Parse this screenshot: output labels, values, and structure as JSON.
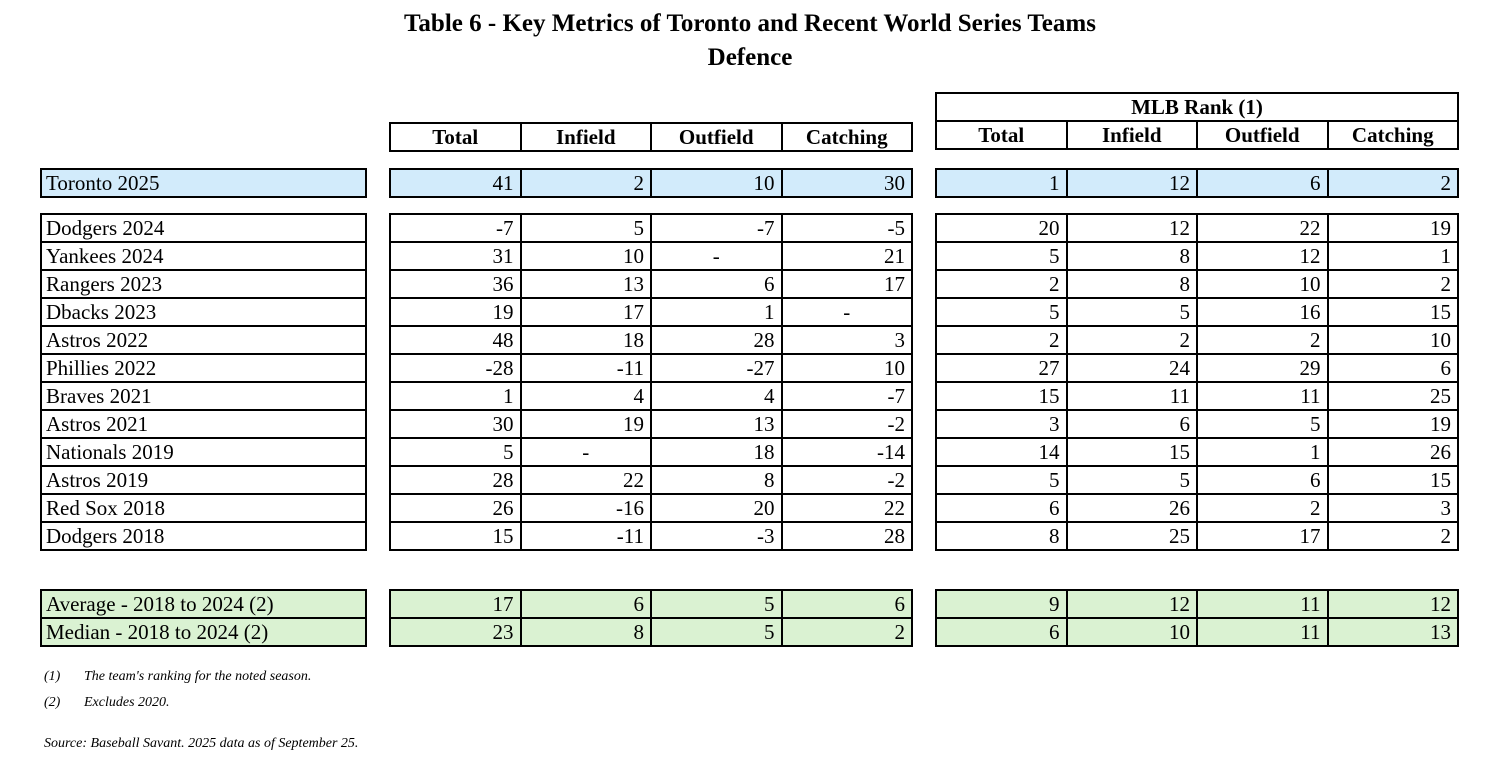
{
  "title": "Table 6 - Key Metrics of Toronto and Recent World Series Teams",
  "subtitle": "Defence",
  "rank_group_header": "MLB Rank (1)",
  "metric_headers": [
    "Total",
    "Infield",
    "Outfield",
    "Catching"
  ],
  "rank_headers": [
    "Total",
    "Infield",
    "Outfield",
    "Catching"
  ],
  "toronto": {
    "name": "Toronto 2025",
    "metrics": [
      "41",
      "2",
      "10",
      "30"
    ],
    "ranks": [
      "1",
      "12",
      "6",
      "2"
    ]
  },
  "teams": [
    {
      "name": "Dodgers 2024",
      "metrics": [
        "-7",
        "5",
        "-7",
        "-5"
      ],
      "ranks": [
        "20",
        "12",
        "22",
        "19"
      ]
    },
    {
      "name": "Yankees 2024",
      "metrics": [
        "31",
        "10",
        "-",
        "21"
      ],
      "ranks": [
        "5",
        "8",
        "12",
        "1"
      ]
    },
    {
      "name": "Rangers 2023",
      "metrics": [
        "36",
        "13",
        "6",
        "17"
      ],
      "ranks": [
        "2",
        "8",
        "10",
        "2"
      ]
    },
    {
      "name": "Dbacks 2023",
      "metrics": [
        "19",
        "17",
        "1",
        "-"
      ],
      "ranks": [
        "5",
        "5",
        "16",
        "15"
      ]
    },
    {
      "name": "Astros 2022",
      "metrics": [
        "48",
        "18",
        "28",
        "3"
      ],
      "ranks": [
        "2",
        "2",
        "2",
        "10"
      ]
    },
    {
      "name": "Phillies 2022",
      "metrics": [
        "-28",
        "-11",
        "-27",
        "10"
      ],
      "ranks": [
        "27",
        "24",
        "29",
        "6"
      ]
    },
    {
      "name": "Braves 2021",
      "metrics": [
        "1",
        "4",
        "4",
        "-7"
      ],
      "ranks": [
        "15",
        "11",
        "11",
        "25"
      ]
    },
    {
      "name": "Astros 2021",
      "metrics": [
        "30",
        "19",
        "13",
        "-2"
      ],
      "ranks": [
        "3",
        "6",
        "5",
        "19"
      ]
    },
    {
      "name": "Nationals 2019",
      "metrics": [
        "5",
        "-",
        "18",
        "-14"
      ],
      "ranks": [
        "14",
        "15",
        "1",
        "26"
      ]
    },
    {
      "name": "Astros 2019",
      "metrics": [
        "28",
        "22",
        "8",
        "-2"
      ],
      "ranks": [
        "5",
        "5",
        "6",
        "15"
      ]
    },
    {
      "name": "Red Sox 2018",
      "metrics": [
        "26",
        "-16",
        "20",
        "22"
      ],
      "ranks": [
        "6",
        "26",
        "2",
        "3"
      ]
    },
    {
      "name": "Dodgers 2018",
      "metrics": [
        "15",
        "-11",
        "-3",
        "28"
      ],
      "ranks": [
        "8",
        "25",
        "17",
        "2"
      ]
    }
  ],
  "summary": [
    {
      "name": "Average - 2018 to 2024 (2)",
      "metrics": [
        "17",
        "6",
        "5",
        "6"
      ],
      "ranks": [
        "9",
        "12",
        "11",
        "12"
      ]
    },
    {
      "name": "Median - 2018 to 2024 (2)",
      "metrics": [
        "23",
        "8",
        "5",
        "2"
      ],
      "ranks": [
        "6",
        "10",
        "11",
        "13"
      ]
    }
  ],
  "footnotes": [
    {
      "marker": "(1)",
      "text": "The team's ranking for the noted season."
    },
    {
      "marker": "(2)",
      "text": "Excludes 2020."
    }
  ],
  "source": "Source: Baseball Savant. 2025 data as of September 25.",
  "colors": {
    "highlight_blue": "#d2ebfb",
    "summary_green": "#daf2d2"
  }
}
